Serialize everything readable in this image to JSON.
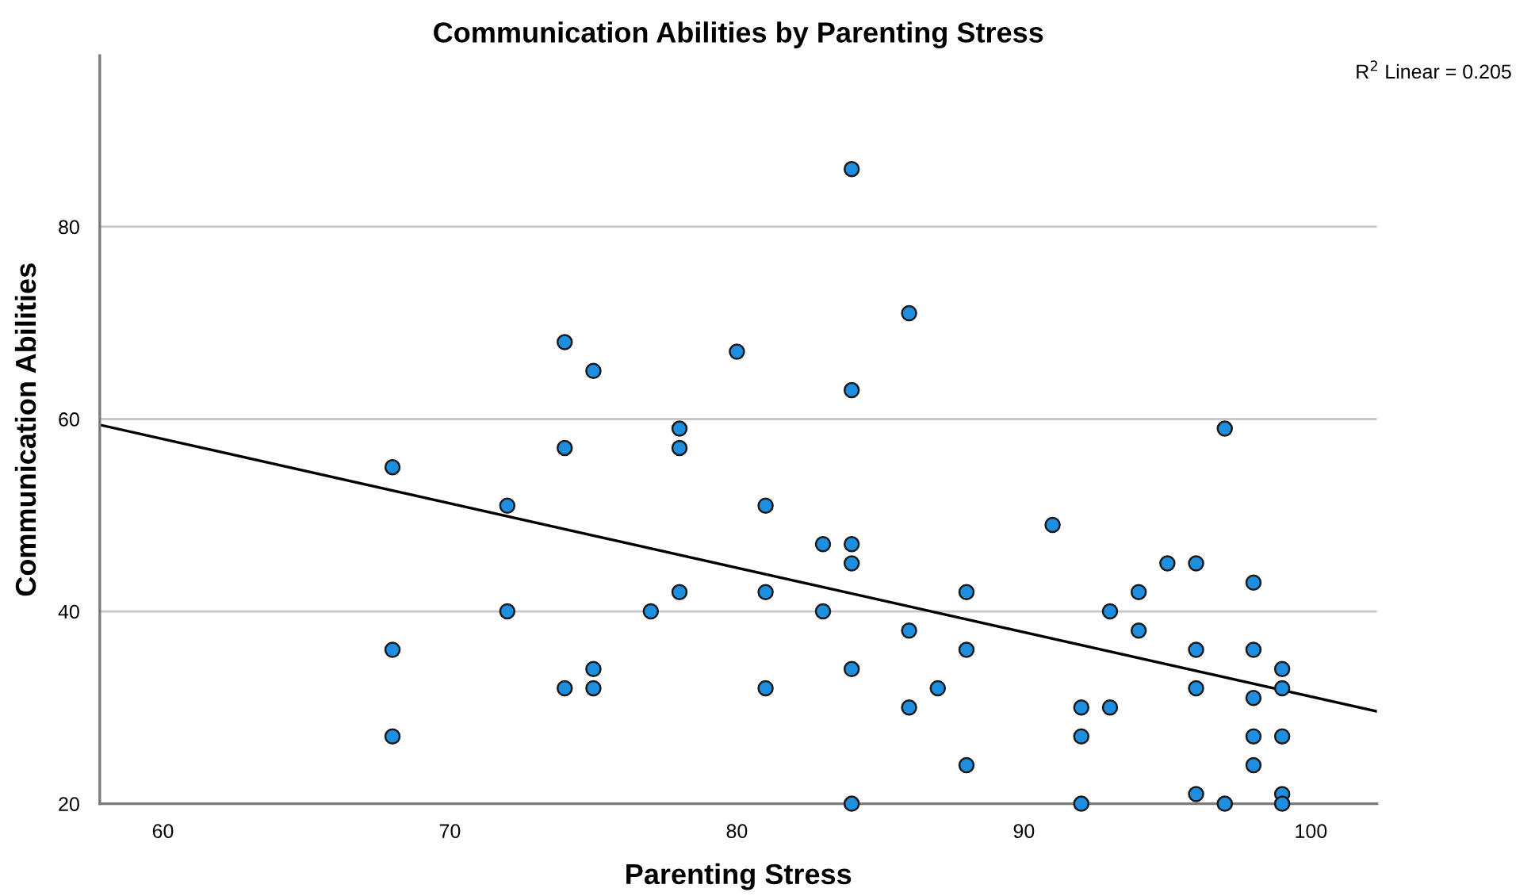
{
  "chart_data": {
    "type": "scatter",
    "title": "Communication Abilities by Parenting Stress",
    "xlabel": "Parenting Stress",
    "ylabel": "Communication Abilities",
    "annotations": [
      "R$^{2}$ Linear = 0.205"
    ],
    "series": [
      {
        "color": "#1e8fe0",
        "marker": "circle",
        "x": [
          68,
          68,
          68,
          72,
          72,
          74,
          74,
          74,
          75,
          75,
          75,
          77,
          78,
          78,
          78,
          80,
          81,
          81,
          81,
          83,
          83,
          84,
          84,
          84,
          84,
          84,
          84,
          86,
          86,
          86,
          87,
          88,
          88,
          88,
          91,
          92,
          92,
          92,
          93,
          93,
          94,
          94,
          95,
          96,
          96,
          96,
          96,
          97,
          97,
          98,
          98,
          98,
          98,
          98,
          99,
          99,
          99,
          99,
          99
        ],
        "values": [
          55,
          36,
          27,
          51,
          40,
          68,
          57,
          32,
          65,
          34,
          32,
          40,
          59,
          57,
          42,
          67,
          51,
          42,
          32,
          47,
          40,
          86,
          63,
          47,
          45,
          34,
          20,
          71,
          38,
          30,
          32,
          42,
          36,
          24,
          49,
          30,
          27,
          20,
          40,
          30,
          42,
          38,
          45,
          45,
          36,
          32,
          21,
          59,
          20,
          43,
          36,
          31,
          27,
          24,
          34,
          32,
          27,
          21,
          20
        ]
      },
      {
        "type": "line",
        "color": "#000000",
        "marker": "none",
        "line_style": "solid",
        "x": [
          57.8,
          102.3
        ],
        "values": [
          59.4,
          29.6
        ]
      }
    ],
    "xlim": [
      57.8,
      102.3
    ],
    "ylim": [
      20,
      97.8
    ],
    "xticks": [
      60,
      70,
      80,
      90,
      100
    ],
    "yticks": [
      20,
      40,
      60,
      80
    ],
    "grid": "y"
  }
}
